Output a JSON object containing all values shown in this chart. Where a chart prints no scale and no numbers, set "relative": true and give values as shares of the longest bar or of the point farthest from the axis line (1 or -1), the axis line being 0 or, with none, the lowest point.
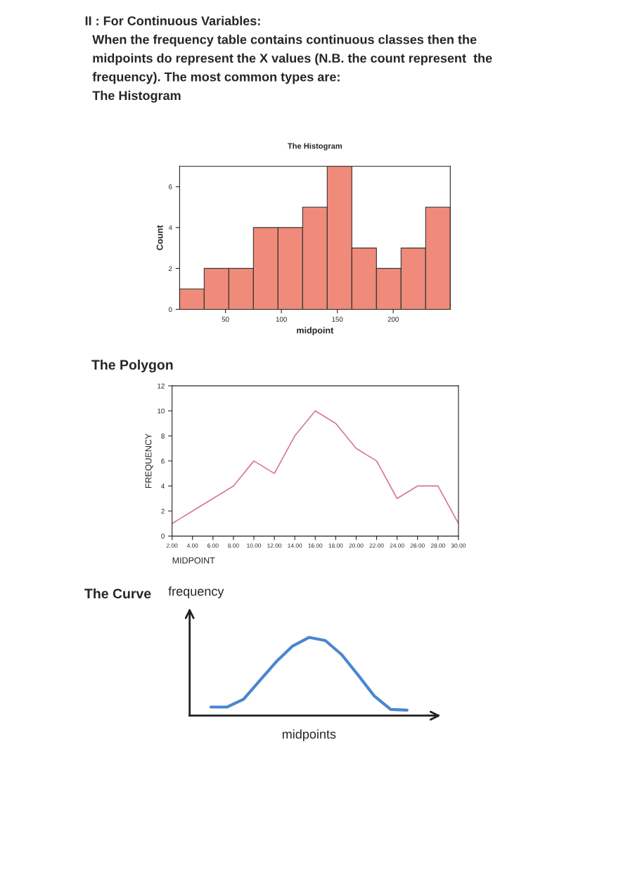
{
  "chart_data": [
    {
      "type": "histogram",
      "title": "The Histogram",
      "xlabel": "midpoint",
      "ylabel": "Count",
      "annotations": [
        "II : For Continuous Variables:",
        "When the frequency table contains continuous classes then the",
        "midpoints do represent the X values (N.B. the count represent  the",
        "frequency). The most common types are:",
        "The Histogram"
      ],
      "bins": [
        9,
        31,
        53,
        75,
        97,
        119,
        141,
        163,
        185,
        207,
        229,
        251
      ],
      "values": [
        1,
        2,
        2,
        4,
        4,
        5,
        7,
        3,
        2,
        3,
        5
      ],
      "color": "#f08a7a",
      "xlim": [
        9,
        251
      ],
      "ylim": [
        0,
        7
      ],
      "xticks": [
        50,
        100,
        150,
        200
      ],
      "yticks": [
        0,
        2,
        4,
        6
      ]
    },
    {
      "type": "line",
      "title": "The Polygon",
      "xlabel": "MIDPOINT",
      "ylabel": "FREQUENCY",
      "x": [
        2,
        4,
        6,
        8,
        10,
        12,
        14,
        16,
        18,
        20,
        22,
        24,
        26,
        28,
        30
      ],
      "values": [
        1,
        2,
        3,
        4,
        6,
        5,
        8,
        10,
        9,
        7,
        6,
        3,
        4,
        4,
        1
      ],
      "color": "#d8788a",
      "xlim": [
        2,
        30
      ],
      "ylim": [
        0,
        12
      ],
      "xticks": [
        {
          "value": 2,
          "label": "2.00"
        },
        {
          "value": 4,
          "label": "4.00"
        },
        {
          "value": 6,
          "label": "6.00"
        },
        {
          "value": 8,
          "label": "8.00"
        },
        {
          "value": 10,
          "label": "10.00"
        },
        {
          "value": 12,
          "label": "12.00"
        },
        {
          "value": 14,
          "label": "14.00"
        },
        {
          "value": 16,
          "label": "16.00"
        },
        {
          "value": 18,
          "label": "18.00"
        },
        {
          "value": 20,
          "label": "20.00"
        },
        {
          "value": 22,
          "label": "22.00"
        },
        {
          "value": 24,
          "label": "24.00"
        },
        {
          "value": 26,
          "label": "26.00"
        },
        {
          "value": 28,
          "label": "28.00"
        },
        {
          "value": 30,
          "label": "30.00"
        }
      ],
      "yticks": [
        0,
        2,
        4,
        6,
        8,
        10,
        12
      ]
    },
    {
      "type": "line",
      "title": "The Curve",
      "xlabel": "midpoints",
      "ylabel": "frequency",
      "relative": true,
      "categories": [
        null,
        null,
        null,
        null,
        null,
        null,
        null,
        null,
        null,
        null,
        null,
        null,
        null
      ],
      "values": [
        0.11,
        0.11,
        0.21,
        0.45,
        0.69,
        0.89,
        1.0,
        0.96,
        0.78,
        0.52,
        0.25,
        0.08,
        0.07
      ],
      "color": "#4a86d0"
    }
  ]
}
